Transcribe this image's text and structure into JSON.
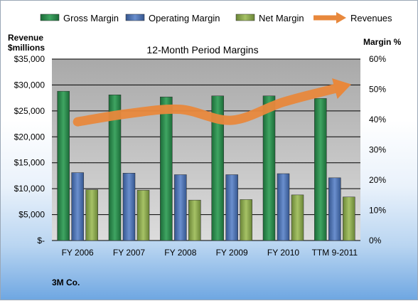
{
  "chart_data": {
    "type": "bar",
    "title": "12-Month Period Margins",
    "left_axis_title": [
      "Revenue",
      "$millions"
    ],
    "right_axis_title": "Margin %",
    "categories": [
      "FY 2006",
      "FY 2007",
      "FY 2008",
      "FY 2009",
      "FY 2010",
      "TTM 9-2011"
    ],
    "left_axis": {
      "range": [
        0,
        35000
      ],
      "ticks": [
        "$-",
        "$5,000",
        "$10,000",
        "$15,000",
        "$20,000",
        "$25,000",
        "$30,000",
        "$35,000"
      ]
    },
    "right_axis": {
      "range": [
        0,
        60
      ],
      "ticks": [
        "0%",
        "10%",
        "20%",
        "30%",
        "40%",
        "50%",
        "60%"
      ]
    },
    "series": [
      {
        "name": "Gross Margin",
        "axis": "left",
        "kind": "bar",
        "color": "#2e8b4e",
        "values": [
          28800,
          28100,
          27700,
          27900,
          27900,
          27400
        ]
      },
      {
        "name": "Operating Margin",
        "axis": "left",
        "kind": "bar",
        "color": "#4f74b8",
        "values": [
          13100,
          13000,
          12700,
          12700,
          12900,
          12100
        ]
      },
      {
        "name": "Net Margin",
        "axis": "left",
        "kind": "bar",
        "color": "#8fae4e",
        "values": [
          9800,
          9700,
          7800,
          7900,
          8800,
          8400
        ]
      },
      {
        "name": "Revenues",
        "axis": "left",
        "kind": "line-arrow",
        "color": "#e8883c",
        "values": [
          22900,
          24500,
          25300,
          23200,
          26700,
          29300
        ]
      }
    ],
    "legend_position": "top",
    "grid": true
  },
  "company": "3M Co."
}
